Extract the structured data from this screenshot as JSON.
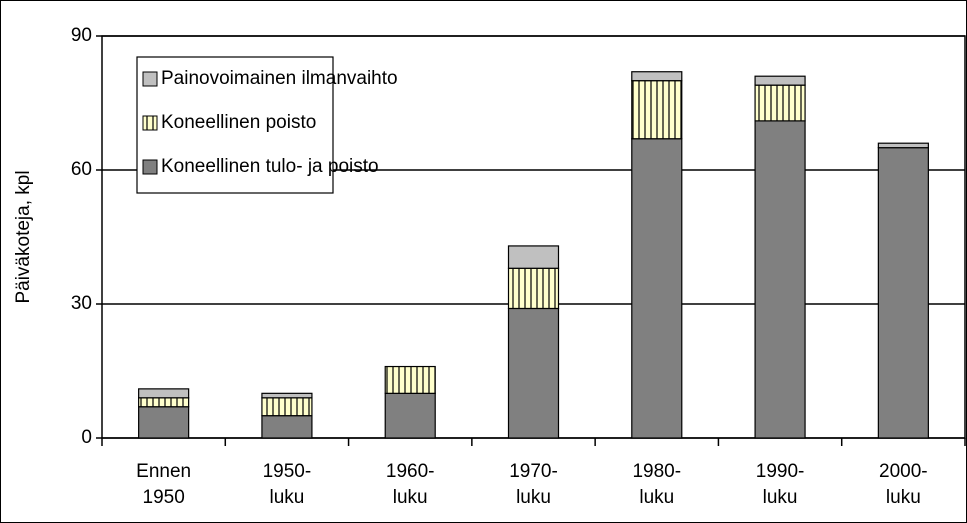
{
  "chart_data": {
    "type": "stacked_bar",
    "y_label": "Päiväkoteja, kpl",
    "categories": [
      "Ennen\n1950",
      "1950-\nluku",
      "1960-\nluku",
      "1970-\nluku",
      "1980-\nluku",
      "1990-\nluku",
      "2000-\nluku"
    ],
    "series": [
      {
        "name": "Koneellinen tulo- ja poisto",
        "color": "#808080",
        "values": [
          7,
          5,
          10,
          29,
          67,
          71,
          65
        ]
      },
      {
        "name": "Koneellinen poisto",
        "color": "#ffffcc",
        "values": [
          2,
          4,
          6,
          9,
          13,
          8,
          0
        ]
      },
      {
        "name": "Painovoimainen ilmanvaihto",
        "color": "#c0c0c0",
        "values": [
          2,
          1,
          0,
          5,
          2,
          2,
          1
        ]
      }
    ],
    "ylim": [
      0,
      90
    ],
    "yticks": [
      0,
      30,
      60,
      90
    ],
    "grid": true,
    "legend": "top-left"
  }
}
